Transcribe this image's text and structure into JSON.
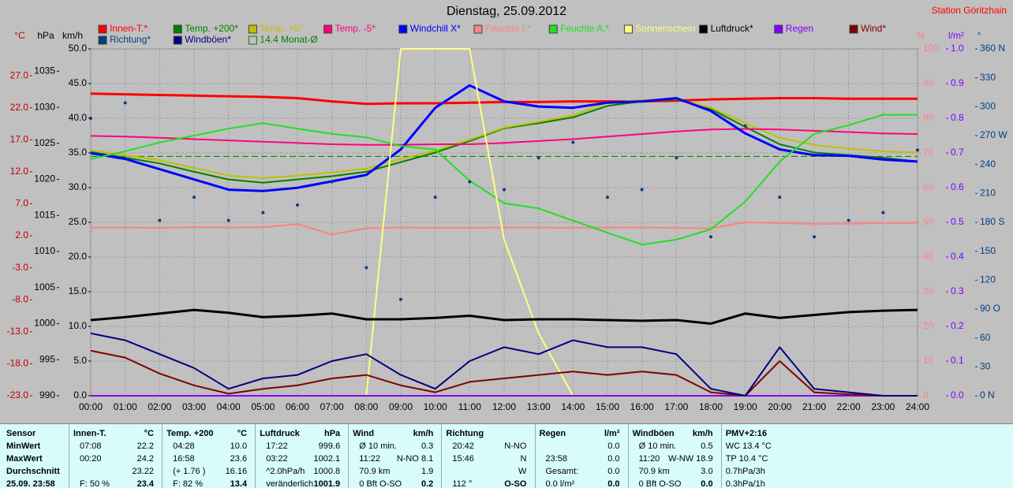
{
  "chart_data": {
    "type": "line",
    "title": "Dienstag, 25.09.2012",
    "station": "Station Göritzhain",
    "x": [
      0,
      1,
      2,
      3,
      4,
      5,
      6,
      7,
      8,
      9,
      10,
      11,
      12,
      13,
      14,
      15,
      16,
      17,
      18,
      19,
      20,
      21,
      22,
      23,
      24
    ],
    "xlim": [
      0,
      24
    ],
    "xticks": [
      {
        "value": 0,
        "label": "00:00"
      },
      {
        "value": 1,
        "label": "01:00"
      },
      {
        "value": 2,
        "label": "02:00"
      },
      {
        "value": 3,
        "label": "03:00"
      },
      {
        "value": 4,
        "label": "04:00"
      },
      {
        "value": 5,
        "label": "05:00"
      },
      {
        "value": 6,
        "label": "06:00"
      },
      {
        "value": 7,
        "label": "07:00"
      },
      {
        "value": 8,
        "label": "08:00"
      },
      {
        "value": 9,
        "label": "09:00"
      },
      {
        "value": 10,
        "label": "10:00"
      },
      {
        "value": 11,
        "label": "11:00"
      },
      {
        "value": 12,
        "label": "12:00"
      },
      {
        "value": 13,
        "label": "13:00"
      },
      {
        "value": 14,
        "label": "14:00"
      },
      {
        "value": 15,
        "label": "15:00"
      },
      {
        "value": 16,
        "label": "16:00"
      },
      {
        "value": 17,
        "label": "17:00"
      },
      {
        "value": 18,
        "label": "18:00"
      },
      {
        "value": 19,
        "label": "19:00"
      },
      {
        "value": 20,
        "label": "20:00"
      },
      {
        "value": 21,
        "label": "21:00"
      },
      {
        "value": 22,
        "label": "22:00"
      },
      {
        "value": 23,
        "label": "23:00"
      },
      {
        "value": 24,
        "label": "24:00"
      }
    ],
    "grid": true,
    "axes": {
      "temp": {
        "unit": "°C",
        "color": "#c00000",
        "side": "left",
        "ylim": [
          -23,
          31.2
        ],
        "yticks": [
          {
            "value": 27,
            "label": "27.0"
          },
          {
            "value": 22,
            "label": "22.0"
          },
          {
            "value": 17,
            "label": "17.0"
          },
          {
            "value": 12,
            "label": "12.0"
          },
          {
            "value": 7,
            "label": "7.0"
          },
          {
            "value": 2,
            "label": "2.0"
          },
          {
            "value": -3,
            "label": "-3.0"
          },
          {
            "value": -8,
            "label": "-8.0"
          },
          {
            "value": -13,
            "label": "-13.0"
          },
          {
            "value": -18,
            "label": "-18.0"
          },
          {
            "value": -23,
            "label": "-23.0"
          }
        ]
      },
      "pressure": {
        "unit": "hPa",
        "color": "#000000",
        "side": "left",
        "ylim": [
          990,
          1038.1
        ],
        "yticks": [
          1035,
          1030,
          1025,
          1020,
          1015,
          1010,
          1005,
          1000,
          995,
          990
        ]
      },
      "speed": {
        "unit": "km/h",
        "color": "#000000",
        "side": "left",
        "ylim": [
          0,
          50
        ],
        "yticks": [
          {
            "value": 50,
            "label": "50.0"
          },
          {
            "value": 45,
            "label": "45.0"
          },
          {
            "value": 40,
            "label": "40.0"
          },
          {
            "value": 35,
            "label": "35.0"
          },
          {
            "value": 30,
            "label": "30.0"
          },
          {
            "value": 25,
            "label": "25.0"
          },
          {
            "value": 20,
            "label": "20.0"
          },
          {
            "value": 15,
            "label": "15.0"
          },
          {
            "value": 10,
            "label": "10.0"
          },
          {
            "value": 5,
            "label": "5.0"
          },
          {
            "value": 0,
            "label": "0.0"
          }
        ]
      },
      "percent": {
        "unit": "%",
        "color": "#ff8080",
        "side": "right",
        "ylim": [
          0,
          100
        ],
        "yticks": [
          100,
          90,
          80,
          70,
          60,
          50,
          40,
          30,
          20,
          10,
          0
        ]
      },
      "rain": {
        "unit": "l/m²",
        "color": "#8000ff",
        "side": "right",
        "ylim": [
          0,
          1
        ],
        "yticks": [
          {
            "value": 1,
            "label": "1.0"
          },
          0.9,
          0.8,
          0.7,
          0.6,
          0.5,
          0.4,
          0.3,
          0.2,
          0.1,
          {
            "value": 0,
            "label": "0.0"
          }
        ]
      },
      "direction": {
        "unit": "°",
        "color": "#004080",
        "side": "right",
        "ylim": [
          0,
          360
        ],
        "yticks": [
          {
            "value": 360,
            "label": "360 N"
          },
          330,
          300,
          {
            "value": 270,
            "label": "270 W"
          },
          240,
          210,
          {
            "value": 180,
            "label": "180 S"
          },
          150,
          120,
          {
            "value": 90,
            "label": "90 O"
          },
          60,
          30,
          {
            "value": 0,
            "label": "0 N"
          }
        ]
      }
    },
    "series": [
      {
        "name": "Innen-T.*",
        "color": "#ff0000",
        "axis": "temp",
        "values": [
          24.2,
          24.1,
          24.0,
          23.9,
          23.8,
          23.7,
          23.5,
          23.0,
          22.6,
          22.7,
          22.7,
          22.8,
          22.9,
          22.9,
          23.0,
          23.0,
          23.0,
          23.1,
          23.3,
          23.4,
          23.5,
          23.5,
          23.4,
          23.4,
          23.4
        ]
      },
      {
        "name": "Temp. +200*",
        "color": "#008000",
        "axis": "temp",
        "values": [
          15.1,
          14.2,
          13.3,
          12.0,
          10.8,
          10.3,
          10.8,
          11.3,
          12.0,
          13.5,
          15.0,
          16.8,
          18.8,
          19.6,
          20.5,
          22.3,
          23.0,
          23.3,
          21.8,
          19.0,
          16.3,
          15.0,
          14.6,
          14.2,
          13.6
        ]
      },
      {
        "name": "Temp. +5*",
        "color": "#c0c000",
        "axis": "temp",
        "values": [
          15.4,
          14.6,
          13.8,
          12.6,
          11.4,
          11.0,
          11.4,
          11.9,
          12.5,
          14.0,
          15.3,
          17.0,
          18.9,
          19.8,
          20.8,
          22.8,
          23.2,
          23.4,
          22.0,
          19.6,
          17.3,
          16.2,
          15.6,
          15.2,
          15.0
        ]
      },
      {
        "name": "Temp. -5*",
        "color": "#ff0080",
        "axis": "temp",
        "values": [
          17.6,
          17.5,
          17.3,
          17.1,
          16.9,
          16.7,
          16.5,
          16.3,
          16.2,
          16.2,
          16.3,
          16.3,
          16.5,
          16.8,
          17.1,
          17.5,
          17.9,
          18.3,
          18.6,
          18.7,
          18.6,
          18.4,
          18.2,
          18.0,
          17.9
        ]
      },
      {
        "name": "Windchill X*",
        "color": "#0000ff",
        "axis": "temp",
        "values": [
          14.9,
          14.0,
          12.4,
          10.8,
          9.2,
          9.0,
          9.5,
          10.5,
          11.5,
          15.5,
          22.0,
          25.5,
          23.0,
          22.2,
          22.0,
          22.8,
          23.0,
          23.5,
          21.5,
          18.0,
          15.5,
          14.6,
          14.5,
          13.9,
          13.6
        ]
      },
      {
        "name": "Feuchte I.*",
        "color": "#ff8080",
        "axis": "percent",
        "values": [
          48.5,
          48.5,
          48.4,
          48.6,
          48.5,
          48.6,
          49.5,
          46.5,
          48.3,
          48.5,
          48.4,
          48.4,
          48.5,
          48.5,
          48.4,
          48.5,
          48.5,
          48.4,
          48.3,
          50.0,
          49.8,
          49.5,
          49.6,
          49.8,
          49.8
        ]
      },
      {
        "name": "Feuchte A.*",
        "color": "#20e020",
        "axis": "percent",
        "values": [
          68.2,
          70.5,
          73,
          75,
          77,
          78.6,
          77,
          75.5,
          74.5,
          72,
          71,
          62,
          55.5,
          54,
          50.5,
          47,
          43.6,
          45,
          48,
          56,
          67.5,
          75.5,
          78,
          81,
          81
        ]
      },
      {
        "name": "Sonnenschein",
        "color": "#ffff80",
        "axis": "percent",
        "values": [
          0,
          0,
          0,
          0,
          0,
          0,
          0,
          0,
          0,
          100,
          100,
          100,
          45,
          18,
          0,
          0,
          0,
          0,
          0,
          0,
          0,
          0,
          0,
          0,
          0
        ]
      },
      {
        "name": "Luftdruck*",
        "color": "#000000",
        "axis": "pressure",
        "values": [
          1000.5,
          1000.9,
          1001.4,
          1001.9,
          1001.5,
          1000.9,
          1001.1,
          1001.4,
          1000.6,
          1000.6,
          1000.8,
          1001.1,
          1000.5,
          1000.6,
          1000.6,
          1000.5,
          1000.4,
          1000.5,
          1000.0,
          1001.4,
          1000.8,
          1001.2,
          1001.6,
          1001.8,
          1001.9
        ]
      },
      {
        "name": "Regen",
        "color": "#8000ff",
        "axis": "rain",
        "values": [
          0,
          0,
          0,
          0,
          0,
          0,
          0,
          0,
          0,
          0,
          0,
          0,
          0,
          0,
          0,
          0,
          0,
          0,
          0,
          0,
          0,
          0,
          0,
          0,
          0
        ]
      },
      {
        "name": "Wind*",
        "color": "#800000",
        "axis": "speed",
        "values": [
          6.5,
          5.5,
          3.2,
          1.5,
          0.3,
          1.0,
          1.5,
          2.5,
          3.0,
          1.5,
          0.5,
          2.0,
          2.5,
          3.0,
          3.5,
          3.0,
          3.5,
          3.0,
          0.5,
          0,
          5.0,
          0.5,
          0.2,
          0,
          0
        ]
      },
      {
        "name": "Richtung*",
        "color": "#004080",
        "axis": "direction",
        "style": "dots",
        "values": [
          288,
          304,
          182,
          206,
          182,
          190,
          198,
          222,
          133,
          100,
          206,
          222,
          214,
          247,
          263,
          206,
          214,
          247,
          165,
          280,
          206,
          165,
          182,
          190,
          255
        ]
      },
      {
        "name": "Windböen*",
        "color": "#000080",
        "axis": "speed",
        "values": [
          9,
          8,
          6,
          4,
          1,
          2.5,
          3,
          5,
          6,
          3,
          1,
          5,
          7,
          6,
          8,
          7,
          7,
          6,
          1,
          0,
          7,
          1,
          0.5,
          0,
          0
        ]
      }
    ],
    "reference_lines": [
      {
        "name": "14.4 Monat-Ø",
        "color": "#008000",
        "axis": "temp",
        "value": 14.4
      }
    ]
  },
  "table": {
    "corner": "Sensor",
    "row_labels": [
      "MinWert",
      "MaxWert",
      "Durchschnitt",
      "25.09. 23:58"
    ],
    "columns": [
      {
        "header": "Innen-T.",
        "unit": "°C",
        "rows": [
          [
            "07:08",
            "22.2"
          ],
          [
            "00:20",
            "24.2"
          ],
          [
            null,
            "23.22"
          ],
          [
            "F: 50 %",
            "23.4"
          ]
        ]
      },
      {
        "header": "Temp. +200",
        "unit": "°C",
        "rows": [
          [
            "04:28",
            "10.0"
          ],
          [
            "16:58",
            "23.6"
          ],
          [
            "(+ 1.76 )",
            "16.16"
          ],
          [
            "F: 82 %",
            "13.4"
          ]
        ]
      },
      {
        "header": "Luftdruck",
        "unit": "hPa",
        "rows": [
          [
            "17:22",
            "999.6"
          ],
          [
            "03:22",
            "1002.1"
          ],
          [
            "^2.0hPa/h",
            "1000.8"
          ],
          [
            "veränderlich",
            "1001.9"
          ]
        ]
      },
      {
        "header": "Wind",
        "unit": "km/h",
        "rows": [
          [
            "Ø 10 min.",
            "0.3"
          ],
          [
            "11:22",
            "N-NO 8.1"
          ],
          [
            "70.9 km",
            "1.9"
          ],
          [
            "0 Bft O-SO",
            "0.2"
          ]
        ]
      },
      {
        "header": "Richtung",
        "rows": [
          [
            "20:42",
            "N-NO"
          ],
          [
            "15:46",
            "N"
          ],
          [
            null,
            "W"
          ],
          [
            "112 °",
            "O-SO"
          ]
        ]
      },
      {
        "header": "Regen",
        "unit": "l/m²",
        "rows": [
          [
            null,
            "0.0"
          ],
          [
            "23:58",
            "0.0"
          ],
          [
            "Gesamt:",
            "0.0"
          ],
          [
            "0.0 l/m²",
            "0.0"
          ]
        ]
      },
      {
        "header": "Windböen",
        "unit": "km/h",
        "rows": [
          [
            "Ø 10 min.",
            "0.5"
          ],
          [
            "11:20",
            "W-NW 18.9"
          ],
          [
            "70.9 km",
            "3.0"
          ],
          [
            "0 Bft O-SO",
            "0.0"
          ]
        ]
      },
      {
        "header": "PMV+2:16",
        "rows": [
          [
            "WC 13.4 °C"
          ],
          [
            "TP 10.4 °C"
          ],
          [
            "0.7hPa/3h"
          ],
          [
            "0.3hPa/1h"
          ]
        ]
      }
    ]
  }
}
